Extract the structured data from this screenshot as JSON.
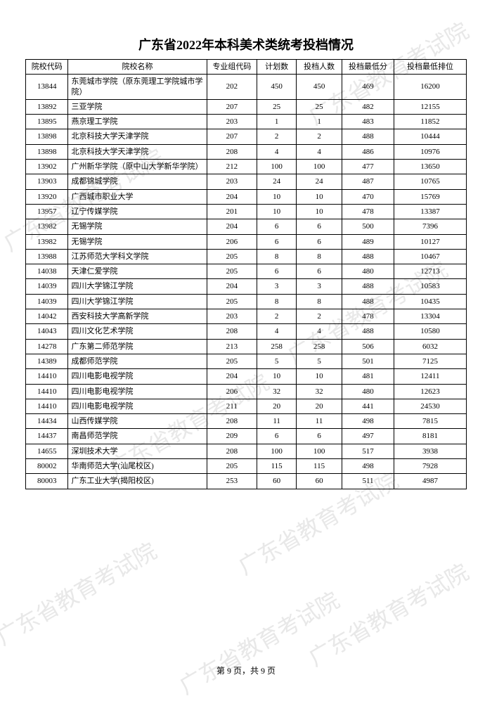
{
  "title": "广东省2022年本科美术类统考投档情况",
  "columns": [
    "院校代码",
    "院校名称",
    "专业组代码",
    "计划数",
    "投档人数",
    "投档最低分",
    "投档最低排位"
  ],
  "rows": [
    [
      "13844",
      "东莞城市学院（原东莞理工学院城市学院）",
      "202",
      "450",
      "450",
      "469",
      "16200"
    ],
    [
      "13892",
      "三亚学院",
      "207",
      "25",
      "25",
      "482",
      "12155"
    ],
    [
      "13895",
      "燕京理工学院",
      "203",
      "1",
      "1",
      "483",
      "11852"
    ],
    [
      "13898",
      "北京科技大学天津学院",
      "207",
      "2",
      "2",
      "488",
      "10444"
    ],
    [
      "13898",
      "北京科技大学天津学院",
      "208",
      "4",
      "4",
      "486",
      "10976"
    ],
    [
      "13902",
      "广州新华学院（原中山大学新华学院）",
      "212",
      "100",
      "100",
      "477",
      "13650"
    ],
    [
      "13903",
      "成都锦城学院",
      "203",
      "24",
      "24",
      "487",
      "10765"
    ],
    [
      "13920",
      "广西城市职业大学",
      "204",
      "10",
      "10",
      "470",
      "15769"
    ],
    [
      "13957",
      "辽宁传媒学院",
      "201",
      "10",
      "10",
      "478",
      "13387"
    ],
    [
      "13982",
      "无锡学院",
      "204",
      "6",
      "6",
      "500",
      "7396"
    ],
    [
      "13982",
      "无锡学院",
      "206",
      "6",
      "6",
      "489",
      "10127"
    ],
    [
      "13988",
      "江苏师范大学科文学院",
      "205",
      "8",
      "8",
      "488",
      "10467"
    ],
    [
      "14038",
      "天津仁爱学院",
      "205",
      "6",
      "6",
      "480",
      "12713"
    ],
    [
      "14039",
      "四川大学锦江学院",
      "204",
      "3",
      "3",
      "488",
      "10583"
    ],
    [
      "14039",
      "四川大学锦江学院",
      "205",
      "8",
      "8",
      "488",
      "10435"
    ],
    [
      "14042",
      "西安科技大学高新学院",
      "203",
      "2",
      "2",
      "478",
      "13304"
    ],
    [
      "14043",
      "四川文化艺术学院",
      "208",
      "4",
      "4",
      "488",
      "10580"
    ],
    [
      "14278",
      "广东第二师范学院",
      "213",
      "258",
      "258",
      "506",
      "6032"
    ],
    [
      "14389",
      "成都师范学院",
      "205",
      "5",
      "5",
      "501",
      "7125"
    ],
    [
      "14410",
      "四川电影电视学院",
      "204",
      "10",
      "10",
      "481",
      "12411"
    ],
    [
      "14410",
      "四川电影电视学院",
      "206",
      "32",
      "32",
      "480",
      "12623"
    ],
    [
      "14410",
      "四川电影电视学院",
      "211",
      "20",
      "20",
      "441",
      "24530"
    ],
    [
      "14434",
      "山西传媒学院",
      "208",
      "11",
      "11",
      "498",
      "7815"
    ],
    [
      "14437",
      "南昌师范学院",
      "209",
      "6",
      "6",
      "497",
      "8181"
    ],
    [
      "14655",
      "深圳技术大学",
      "208",
      "100",
      "100",
      "517",
      "3938"
    ],
    [
      "80002",
      "华南师范大学(汕尾校区)",
      "205",
      "115",
      "115",
      "498",
      "7928"
    ],
    [
      "80003",
      "广东工业大学(揭阳校区)",
      "253",
      "60",
      "60",
      "511",
      "4987"
    ]
  ],
  "watermark_text": "广东省教育考试院",
  "footer": "第 9 页，共 9 页"
}
